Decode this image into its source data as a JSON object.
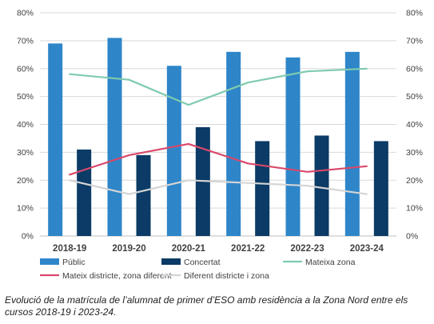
{
  "chart_data": {
    "type": "bar",
    "categories": [
      "2018-19",
      "2019-20",
      "2020-21",
      "2021-22",
      "2022-23",
      "2023-24"
    ],
    "series": [
      {
        "name": "Públic",
        "kind": "bar",
        "color": "#2E86C9",
        "values": [
          69,
          71,
          61,
          66,
          64,
          66
        ]
      },
      {
        "name": "Concertat",
        "kind": "bar",
        "color": "#0B3B66",
        "values": [
          31,
          29,
          39,
          34,
          36,
          34
        ]
      },
      {
        "name": "Mateixa zona",
        "kind": "line",
        "color": "#7FCBAE",
        "values": [
          58,
          56,
          47,
          55,
          59,
          60
        ]
      },
      {
        "name": "Mateix districte, zona diferent",
        "kind": "line",
        "color": "#D9486A",
        "values": [
          22,
          29,
          33,
          26,
          23,
          25
        ]
      },
      {
        "name": "Diferent districte i zona",
        "kind": "line",
        "color": "#D4D4D4",
        "values": [
          20,
          15,
          20,
          19,
          18,
          15
        ]
      }
    ],
    "ylim": [
      0,
      80
    ],
    "yticks": [
      "0%",
      "10%",
      "20%",
      "30%",
      "40%",
      "50%",
      "60%",
      "70%",
      "80%"
    ],
    "y2ticks": [
      "0%",
      "10%",
      "20%",
      "30%",
      "40%",
      "50%",
      "60%",
      "70%",
      "80%"
    ],
    "grid": true,
    "legend_position": "bottom"
  },
  "caption": "Evolució de la matrícula de l’alumnat de primer d’ESO amb residència a la Zona Nord entre els cursos 2018-19 i 2023-24."
}
